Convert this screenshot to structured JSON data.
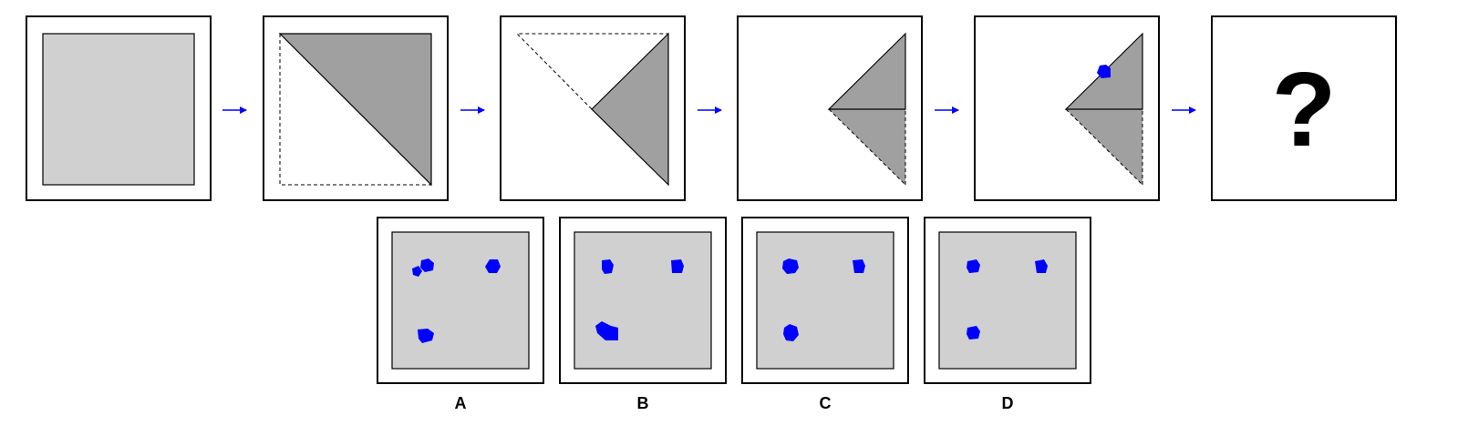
{
  "puzzle": {
    "question_mark": "?",
    "colors": {
      "paper": "#d0d0d0",
      "folded_paper": "#a0a0a0",
      "hole": "#0000ff",
      "arrow": "#0000ff",
      "outline": "#000000"
    },
    "steps": [
      {
        "name": "unfolded-square"
      },
      {
        "name": "folded-diagonal"
      },
      {
        "name": "folded-second"
      },
      {
        "name": "folded-third"
      },
      {
        "name": "punched"
      },
      {
        "name": "question"
      }
    ],
    "options": [
      {
        "label": "A"
      },
      {
        "label": "B"
      },
      {
        "label": "C"
      },
      {
        "label": "D"
      }
    ]
  }
}
